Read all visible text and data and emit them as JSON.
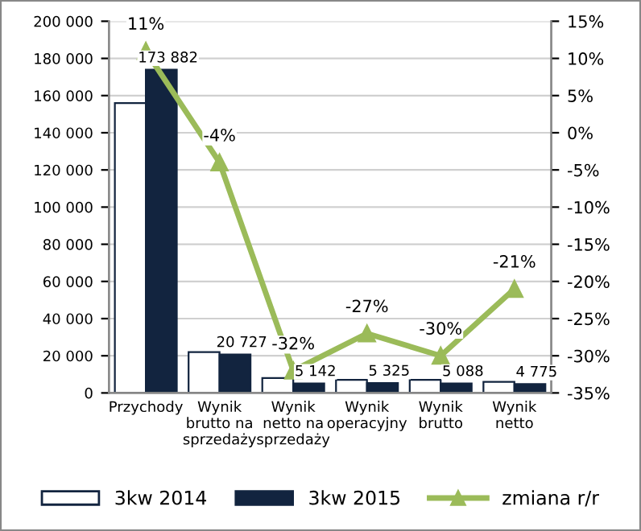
{
  "chart_data": {
    "type": "bar",
    "categories": [
      "Przychody",
      "Wynik\nbrutto na\nsprzedaży",
      "Wynik\nnetto na\nsprzedaży",
      "Wynik\noperacyjny",
      "Wynik\nbrutto",
      "Wynik\nnetto"
    ],
    "series": [
      {
        "name": "3kw 2014",
        "color": "#ffffff",
        "values": [
          156000,
          22000,
          8000,
          7000,
          7000,
          6000
        ]
      },
      {
        "name": "3kw 2015",
        "color": "#12243f",
        "values": [
          173882,
          20727,
          5142,
          5325,
          5088,
          4775
        ],
        "value_labels": [
          "173 882",
          "20 727",
          "5 142",
          "5 325",
          "5 088",
          "4 775"
        ]
      },
      {
        "name": "zmiana r/r",
        "type": "line",
        "axis": "y2",
        "color": "#9bbb59",
        "marker": "triangle",
        "values": [
          11,
          -4,
          -32,
          -27,
          -30,
          -21
        ],
        "value_labels": [
          "11%",
          "-4%",
          "-32%",
          "-27%",
          "-30%",
          "-21%"
        ]
      }
    ],
    "ylim": [
      0,
      200000
    ],
    "yticks": [
      {
        "value": 0,
        "label": "0"
      },
      {
        "value": 20000,
        "label": "20 000"
      },
      {
        "value": 40000,
        "label": "40 000"
      },
      {
        "value": 60000,
        "label": "60 000"
      },
      {
        "value": 80000,
        "label": "80 000"
      },
      {
        "value": 100000,
        "label": "100 000"
      },
      {
        "value": 120000,
        "label": "120 000"
      },
      {
        "value": 140000,
        "label": "140 000"
      },
      {
        "value": 160000,
        "label": "160 000"
      },
      {
        "value": 180000,
        "label": "180 000"
      },
      {
        "value": 200000,
        "label": "200 000"
      }
    ],
    "y2lim": [
      -35,
      15
    ],
    "y2ticks": [
      {
        "value": -35,
        "label": "-35%"
      },
      {
        "value": -30,
        "label": "-30%"
      },
      {
        "value": -25,
        "label": "-25%"
      },
      {
        "value": -20,
        "label": "-20%"
      },
      {
        "value": -15,
        "label": "-15%"
      },
      {
        "value": -10,
        "label": "-10%"
      },
      {
        "value": -5,
        "label": "-5%"
      },
      {
        "value": 0,
        "label": "0%"
      },
      {
        "value": 5,
        "label": "5%"
      },
      {
        "value": 10,
        "label": "10%"
      },
      {
        "value": 15,
        "label": "15%"
      }
    ],
    "grid": "y",
    "legend": "bottom"
  }
}
